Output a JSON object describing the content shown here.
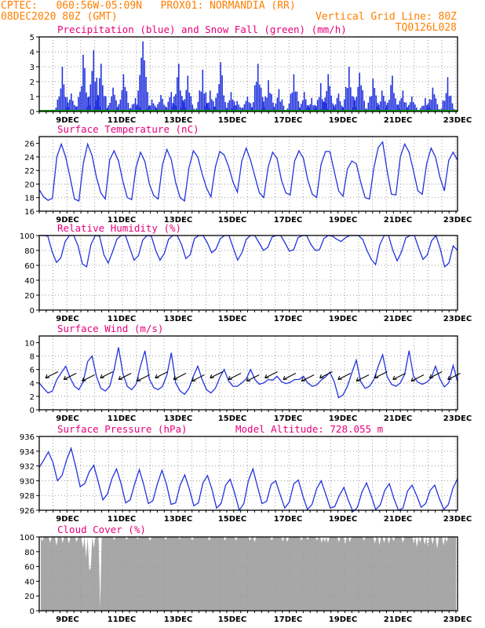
{
  "header": {
    "line1_left": "CPTEC:   060:56W-05:09N   PROX01: NORMANDIA (RR)",
    "line2_left": "08DEC2020 80Z (GMT)",
    "line2_right": "Vertical Grid Line: 80Z",
    "line3_right": "TQ0126L028"
  },
  "x_axis": {
    "tick_labels": [
      "9DEC",
      "11DEC",
      "13DEC",
      "15DEC",
      "17DEC",
      "19DEC",
      "21DEC",
      "23DEC"
    ]
  },
  "colors": {
    "header": "#ff7f00",
    "title": "#e8007a",
    "series": "#2233dd",
    "snow": "#00a000",
    "wind_arrow": "#000000",
    "cloud_fill": "#a7a7a7",
    "grid": "#999999"
  },
  "chart_data": [
    {
      "type": "bar",
      "title": "Precipitation (blue) and Snow Fall (green) (mm/h)",
      "ylim": [
        0,
        5
      ],
      "yticks": [
        "0",
        "1",
        "2",
        "3",
        "4",
        "5"
      ],
      "series": [
        {
          "name": "Precipitation",
          "peaks": [
            [
              1.5,
              3.0
            ],
            [
              2.1,
              1.2
            ],
            [
              2.9,
              3.8
            ],
            [
              3.6,
              4.1
            ],
            [
              4.1,
              3.2
            ],
            [
              4.9,
              1.6
            ],
            [
              5.6,
              2.5
            ],
            [
              6.4,
              0.9
            ],
            [
              6.9,
              4.7
            ],
            [
              7.5,
              0.8
            ],
            [
              8.1,
              1.1
            ],
            [
              8.8,
              1.3
            ],
            [
              9.3,
              3.2
            ],
            [
              9.9,
              2.4
            ],
            [
              10.9,
              2.8
            ],
            [
              11.4,
              1.4
            ],
            [
              12.1,
              3.3
            ],
            [
              12.8,
              1.3
            ],
            [
              13.2,
              0.7
            ],
            [
              13.9,
              1.0
            ],
            [
              14.6,
              3.2
            ],
            [
              15.3,
              2.1
            ],
            [
              16.0,
              1.5
            ],
            [
              17.0,
              2.5
            ],
            [
              17.7,
              1.3
            ],
            [
              18.2,
              0.9
            ],
            [
              18.8,
              1.9
            ],
            [
              19.3,
              2.5
            ],
            [
              20.0,
              1.2
            ],
            [
              20.7,
              3.0
            ],
            [
              21.4,
              2.6
            ],
            [
              22.3,
              2.2
            ],
            [
              22.9,
              1.4
            ],
            [
              23.6,
              2.4
            ],
            [
              24.3,
              1.4
            ],
            [
              24.9,
              1.0
            ],
            [
              25.8,
              0.9
            ],
            [
              26.3,
              1.6
            ],
            [
              27.3,
              2.3
            ]
          ]
        },
        {
          "name": "Snow Fall",
          "values": "0"
        }
      ]
    },
    {
      "type": "line",
      "title": "Surface Temperature (nC)",
      "ylim": [
        16,
        27
      ],
      "yticks": [
        "16",
        "18",
        "20",
        "22",
        "24",
        "26"
      ],
      "series": [
        {
          "name": "Temperature",
          "values": [
            19.2,
            18.1,
            17.6,
            17.9,
            24.0,
            25.9,
            24.0,
            21.0,
            17.8,
            17.5,
            23.0,
            25.9,
            24.2,
            21.0,
            18.7,
            17.8,
            23.6,
            24.9,
            23.4,
            20.4,
            18.0,
            17.7,
            22.5,
            24.7,
            23.3,
            20.0,
            18.3,
            17.8,
            22.9,
            25.1,
            23.6,
            20.2,
            18.0,
            17.5,
            22.4,
            24.9,
            24.0,
            21.5,
            19.4,
            18.1,
            22.5,
            24.8,
            24.3,
            22.6,
            20.3,
            18.8,
            23.4,
            25.3,
            23.5,
            21.1,
            18.7,
            18.0,
            22.5,
            24.7,
            23.8,
            20.6,
            18.7,
            18.4,
            23.4,
            24.9,
            23.8,
            20.6,
            18.5,
            18.0,
            22.9,
            24.8,
            24.8,
            21.9,
            19.0,
            18.2,
            22.2,
            23.4,
            23.0,
            20.3,
            18.0,
            17.8,
            22.4,
            25.4,
            26.2,
            22.0,
            18.5,
            18.4,
            24.0,
            25.9,
            24.7,
            21.9,
            19.0,
            18.5,
            23.0,
            25.3,
            24.0,
            21.0,
            19.0,
            23.5,
            24.7,
            23.5
          ]
        }
      ]
    },
    {
      "type": "line",
      "title": "Relative Humidity (%)",
      "ylim": [
        0,
        100
      ],
      "yticks": [
        "0",
        "20",
        "40",
        "60",
        "80",
        "100"
      ],
      "series": [
        {
          "name": "Humidity",
          "values": [
            100,
            100,
            99,
            78,
            64,
            70,
            92,
            100,
            100,
            86,
            62,
            58,
            88,
            100,
            99,
            74,
            63,
            78,
            95,
            100,
            100,
            83,
            67,
            73,
            94,
            100,
            99,
            80,
            67,
            76,
            95,
            100,
            100,
            88,
            69,
            74,
            96,
            100,
            100,
            90,
            77,
            82,
            96,
            100,
            100,
            83,
            67,
            77,
            95,
            100,
            100,
            90,
            80,
            84,
            98,
            100,
            100,
            90,
            79,
            81,
            97,
            100,
            100,
            88,
            80,
            81,
            96,
            100,
            99,
            95,
            92,
            97,
            100,
            100,
            100,
            95,
            80,
            68,
            61,
            88,
            100,
            100,
            80,
            66,
            78,
            97,
            100,
            100,
            83,
            68,
            74,
            93,
            100,
            82,
            58,
            63,
            86,
            80
          ]
        }
      ]
    },
    {
      "type": "line",
      "title": "Surface Wind (m/s)",
      "ylim": [
        0,
        11
      ],
      "yticks": [
        "0",
        "2",
        "4",
        "6",
        "8",
        "10"
      ],
      "series": [
        {
          "name": "Wind speed",
          "values": [
            4.0,
            3.2,
            2.5,
            2.8,
            4.5,
            5.5,
            6.5,
            4.8,
            3.5,
            3.0,
            4.2,
            7.2,
            8.0,
            5.0,
            3.2,
            2.8,
            3.5,
            6.0,
            9.3,
            5.4,
            3.5,
            3.0,
            3.8,
            6.5,
            8.8,
            4.6,
            3.3,
            3.0,
            3.5,
            5.2,
            8.5,
            4.0,
            2.8,
            2.3,
            3.2,
            5.0,
            6.5,
            4.5,
            3.0,
            2.5,
            3.2,
            4.8,
            6.0,
            4.3,
            3.5,
            3.5,
            4.0,
            4.6,
            6.0,
            4.5,
            3.8,
            4.0,
            4.5,
            4.4,
            5.0,
            4.2,
            3.9,
            4.1,
            4.5,
            4.5,
            5.0,
            4.0,
            3.5,
            3.7,
            4.4,
            4.9,
            5.6,
            4.2,
            1.8,
            2.2,
            3.5,
            5.5,
            7.4,
            4.2,
            3.2,
            3.5,
            4.5,
            6.5,
            8.2,
            5.0,
            3.8,
            3.5,
            4.0,
            5.3,
            8.8,
            5.0,
            4.1,
            3.8,
            4.1,
            4.7,
            6.5,
            4.6,
            3.4,
            4.0,
            6.6,
            4.2
          ]
        }
      ]
    },
    {
      "type": "line",
      "title": "Surface Pressure (hPa)",
      "annotation": "Model Altitude: 728.055 m",
      "ylim": [
        926,
        936
      ],
      "yticks": [
        "926",
        "928",
        "930",
        "932",
        "934",
        "936"
      ],
      "series": [
        {
          "name": "Pressure",
          "values": [
            931.8,
            932.8,
            933.9,
            932.5,
            930.0,
            930.7,
            932.8,
            934.4,
            932.0,
            929.2,
            929.6,
            931.2,
            932.1,
            929.8,
            927.4,
            928.2,
            930.3,
            931.6,
            929.6,
            927.0,
            927.4,
            929.6,
            931.5,
            929.4,
            926.9,
            927.3,
            929.6,
            931.4,
            929.5,
            926.8,
            927.0,
            929.4,
            930.8,
            928.9,
            926.6,
            927.0,
            929.7,
            930.7,
            928.8,
            926.3,
            926.9,
            929.4,
            930.2,
            928.3,
            926.0,
            926.9,
            930.0,
            931.6,
            929.2,
            926.9,
            927.2,
            929.5,
            930.0,
            928.1,
            926.3,
            927.1,
            929.6,
            930.1,
            927.9,
            926.1,
            926.8,
            928.9,
            930.0,
            928.2,
            926.3,
            926.5,
            928.0,
            929.1,
            927.3,
            925.8,
            926.4,
            928.5,
            929.7,
            928.0,
            926.1,
            926.7,
            928.7,
            929.6,
            927.6,
            926.0,
            926.3,
            928.6,
            929.4,
            928.0,
            926.4,
            926.9,
            928.7,
            929.4,
            927.6,
            926.1,
            926.8,
            929.0,
            930.3
          ]
        }
      ]
    },
    {
      "type": "area",
      "title": "Cloud Cover (%)",
      "ylim": [
        0,
        100
      ],
      "yticks": [
        "0",
        "20",
        "40",
        "60",
        "80",
        "100"
      ],
      "series": [
        {
          "name": "Cloud cover",
          "dips": [
            [
              0.4,
              94
            ],
            [
              2.1,
              92
            ],
            [
              3.7,
              88
            ],
            [
              5.4,
              92
            ],
            [
              6.9,
              91
            ],
            [
              8.5,
              93
            ],
            [
              10.2,
              84
            ],
            [
              11.0,
              72
            ],
            [
              11.6,
              55
            ],
            [
              12.2,
              58
            ],
            [
              12.7,
              85
            ],
            [
              14.1,
              3
            ],
            [
              17.6,
              96
            ],
            [
              20.7,
              96
            ],
            [
              23.3,
              97
            ],
            [
              26.3,
              94
            ],
            [
              30.2,
              96
            ],
            [
              33.5,
              97
            ],
            [
              36.3,
              95
            ],
            [
              40.6,
              95
            ],
            [
              44.4,
              95
            ],
            [
              47.1,
              95
            ],
            [
              50.2,
              95
            ],
            [
              51.6,
              93
            ],
            [
              55.8,
              95
            ],
            [
              58.4,
              94
            ],
            [
              59.3,
              93
            ],
            [
              62.6,
              95
            ],
            [
              64.4,
              96
            ],
            [
              66.5,
              95
            ],
            [
              67.5,
              92
            ],
            [
              68.3,
              93
            ],
            [
              69.3,
              92
            ],
            [
              71.9,
              93
            ],
            [
              73.4,
              90
            ],
            [
              74.6,
              93
            ],
            [
              78.0,
              95
            ],
            [
              80.5,
              91
            ],
            [
              81.7,
              89
            ],
            [
              82.6,
              92
            ],
            [
              83.8,
              91
            ],
            [
              85.1,
              94
            ],
            [
              87.2,
              92
            ],
            [
              89.7,
              91
            ],
            [
              90.5,
              86
            ],
            [
              91.5,
              92
            ],
            [
              92.3,
              89
            ],
            [
              93.4,
              87
            ],
            [
              94.5,
              90
            ],
            [
              95.6,
              84
            ],
            [
              97.0,
              88
            ],
            [
              97.9,
              93
            ]
          ]
        }
      ]
    }
  ]
}
